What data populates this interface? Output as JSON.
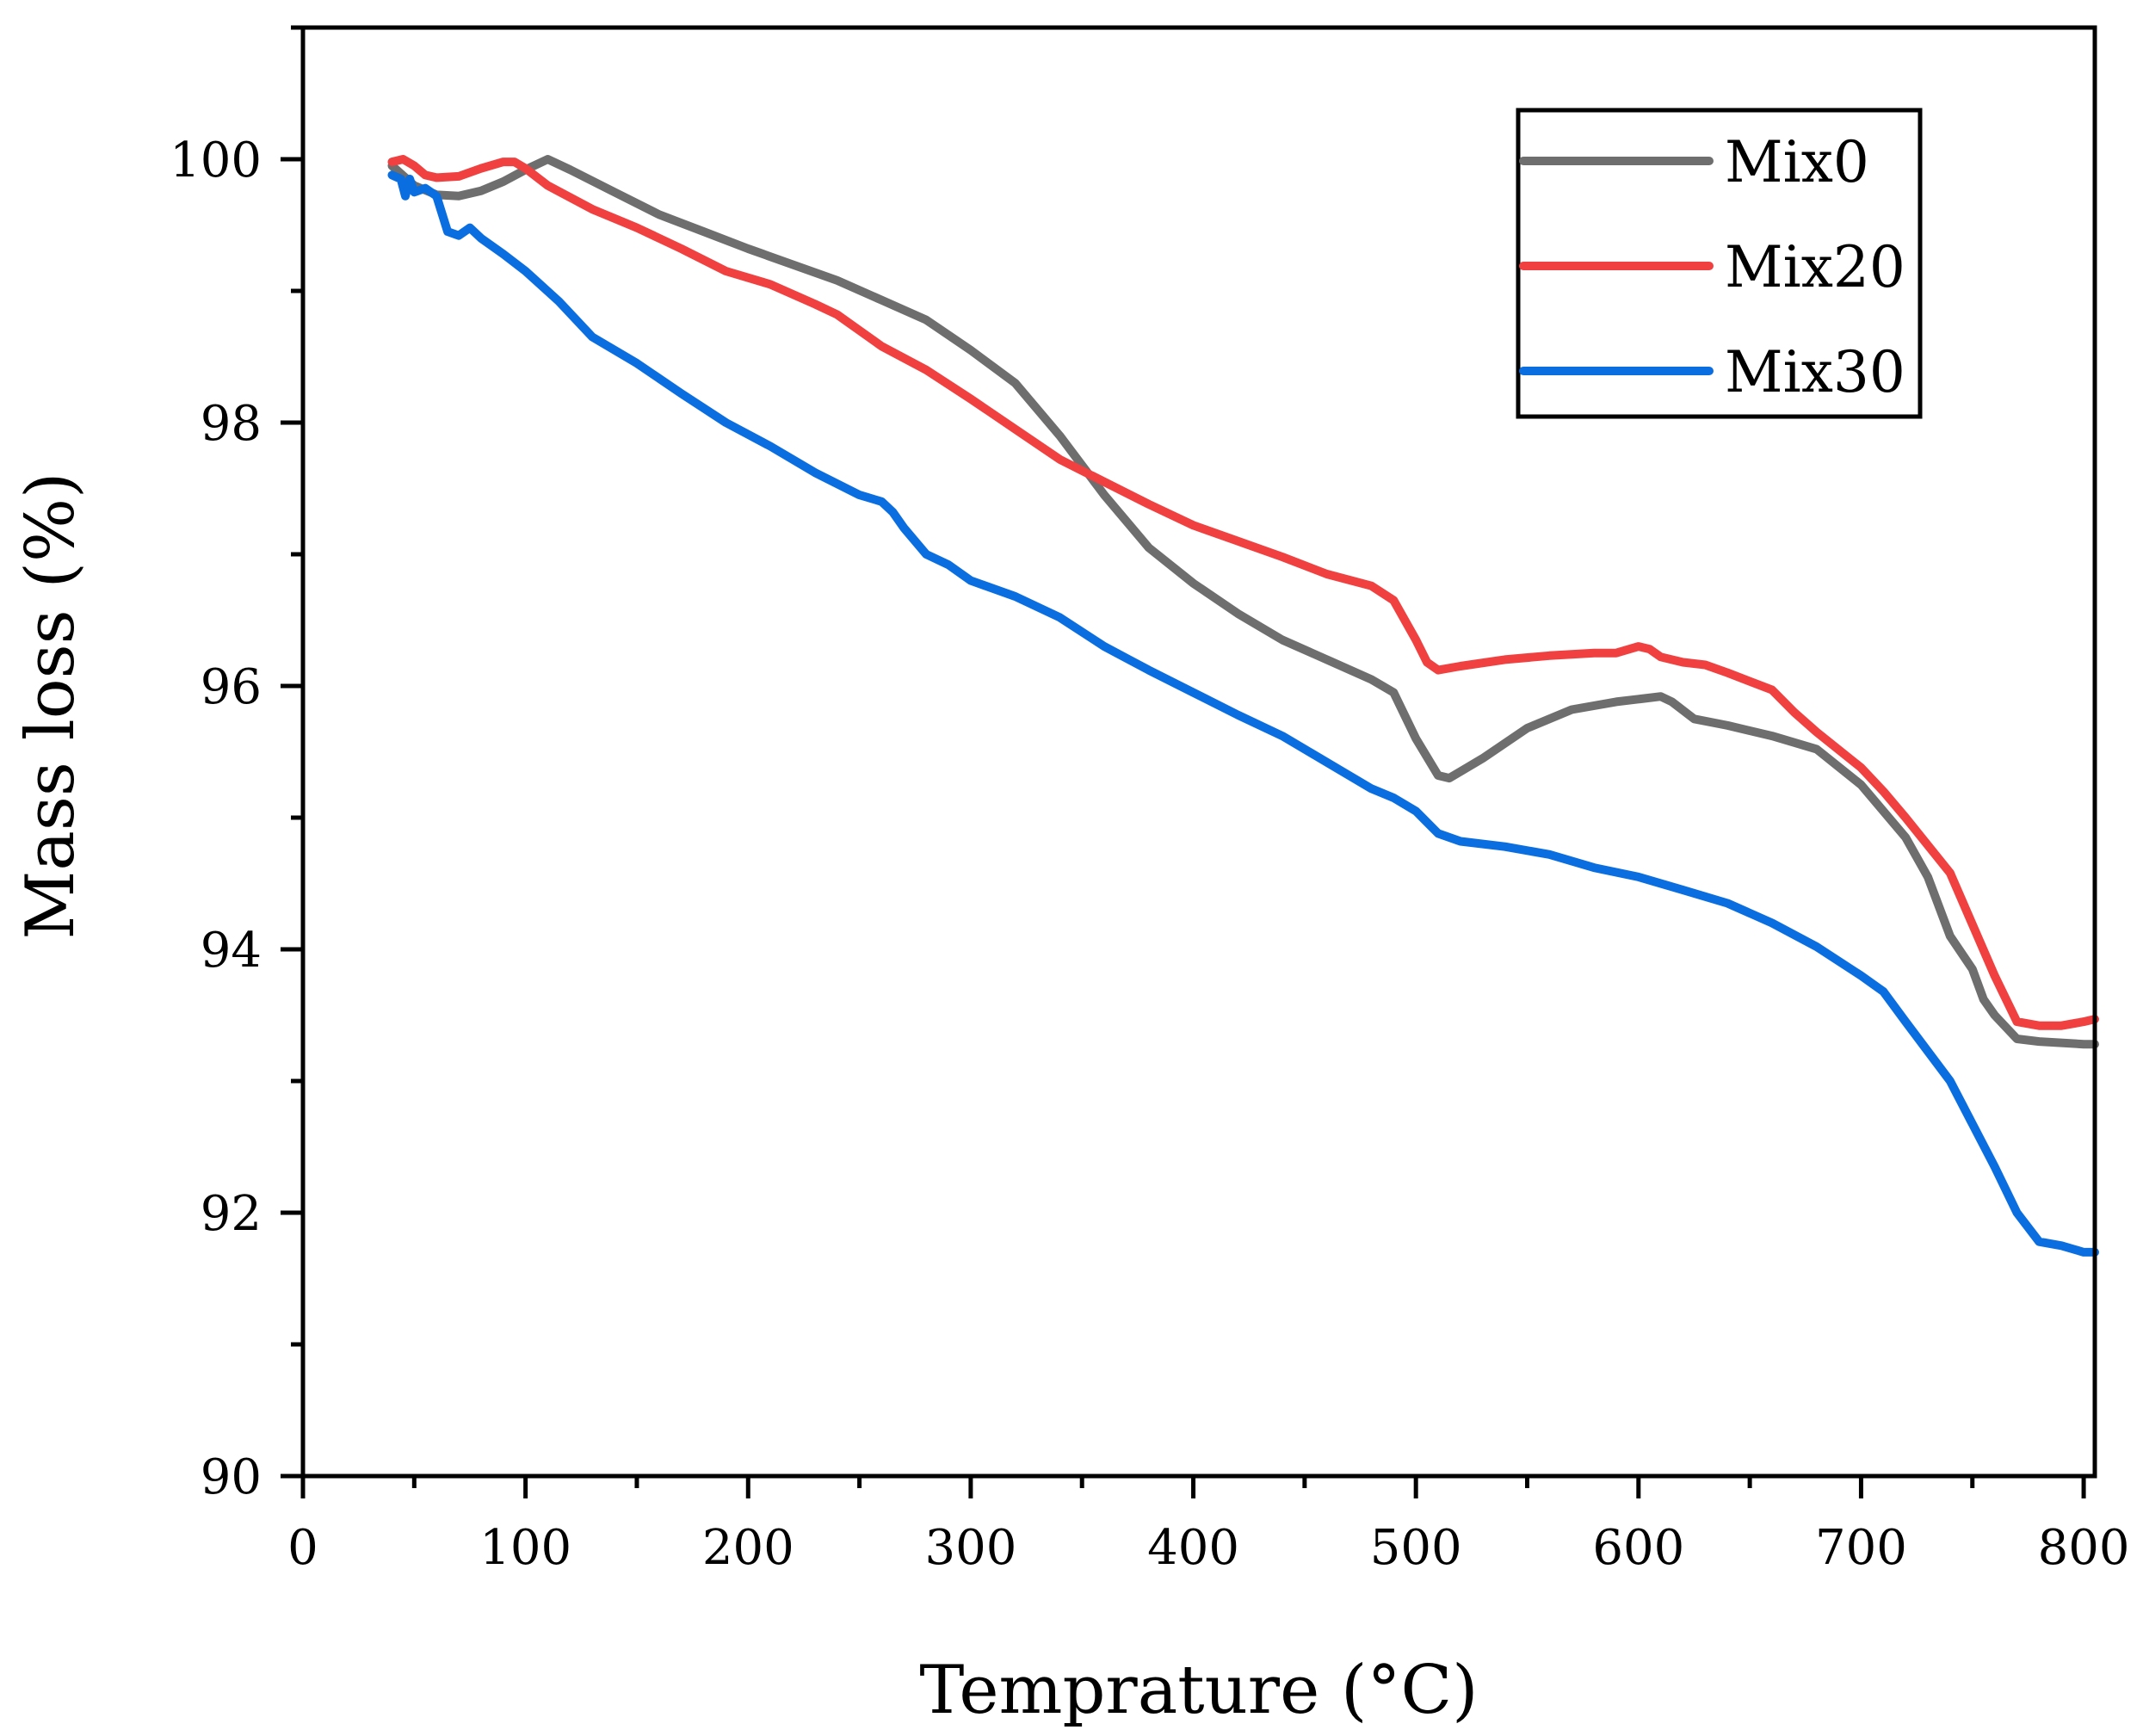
{
  "chart_data": {
    "type": "line",
    "title": "",
    "xlabel": "Temprature (°C)",
    "ylabel": "Mass loss (%)",
    "xlim": [
      0,
      805
    ],
    "ylim": [
      90,
      101
    ],
    "xticks": [
      0,
      100,
      200,
      300,
      400,
      500,
      600,
      700,
      800
    ],
    "yticks": [
      90,
      92,
      94,
      96,
      98,
      100
    ],
    "xticks_minor": [
      50,
      150,
      250,
      350,
      450,
      550,
      650,
      750
    ],
    "yticks_minor": [
      91,
      93,
      95,
      97,
      99,
      101
    ],
    "grid": false,
    "legend_position": "top-right",
    "series": [
      {
        "name": "Mix0",
        "color": "#6e6e6e",
        "x": [
          40,
          50,
          60,
          70,
          80,
          90,
          100,
          110,
          120,
          140,
          160,
          180,
          200,
          220,
          240,
          260,
          280,
          300,
          320,
          340,
          360,
          380,
          400,
          420,
          440,
          460,
          480,
          490,
          500,
          510,
          515,
          530,
          550,
          570,
          590,
          600,
          610,
          615,
          625,
          640,
          660,
          680,
          700,
          720,
          730,
          740,
          750,
          755,
          760,
          770,
          780,
          800,
          805
        ],
        "y": [
          99.95,
          99.8,
          99.73,
          99.72,
          99.76,
          99.83,
          99.92,
          100.0,
          99.92,
          99.75,
          99.58,
          99.45,
          99.32,
          99.2,
          99.08,
          98.93,
          98.78,
          98.55,
          98.3,
          97.9,
          97.45,
          97.05,
          96.78,
          96.55,
          96.35,
          96.2,
          96.05,
          95.95,
          95.6,
          95.32,
          95.3,
          95.45,
          95.68,
          95.82,
          95.88,
          95.9,
          95.92,
          95.88,
          95.75,
          95.7,
          95.62,
          95.52,
          95.25,
          94.85,
          94.55,
          94.1,
          93.85,
          93.62,
          93.5,
          93.32,
          93.3,
          93.28,
          93.28
        ]
      },
      {
        "name": "Mix20",
        "color": "#f04040",
        "x": [
          40,
          45,
          50,
          55,
          60,
          70,
          80,
          90,
          95,
          100,
          110,
          130,
          150,
          170,
          190,
          210,
          230,
          240,
          260,
          280,
          300,
          320,
          340,
          360,
          380,
          400,
          420,
          440,
          460,
          480,
          490,
          500,
          505,
          510,
          520,
          540,
          560,
          580,
          590,
          600,
          605,
          610,
          620,
          630,
          640,
          660,
          670,
          680,
          700,
          710,
          720,
          740,
          760,
          770,
          780,
          790,
          800,
          805
        ],
        "y": [
          99.98,
          100.0,
          99.95,
          99.88,
          99.86,
          99.87,
          99.93,
          99.98,
          99.98,
          99.93,
          99.8,
          99.62,
          99.48,
          99.32,
          99.15,
          99.05,
          98.9,
          98.82,
          98.58,
          98.4,
          98.18,
          97.95,
          97.72,
          97.55,
          97.38,
          97.22,
          97.1,
          96.98,
          96.85,
          96.76,
          96.65,
          96.35,
          96.18,
          96.12,
          96.15,
          96.2,
          96.23,
          96.25,
          96.25,
          96.3,
          96.28,
          96.22,
          96.18,
          96.16,
          96.1,
          95.97,
          95.8,
          95.65,
          95.38,
          95.2,
          95.0,
          94.58,
          93.8,
          93.45,
          93.42,
          93.42,
          93.45,
          93.47
        ]
      },
      {
        "name": "Mix30",
        "color": "#0a6ee0",
        "x": [
          40,
          44,
          46,
          48,
          50,
          55,
          60,
          65,
          70,
          75,
          80,
          90,
          100,
          115,
          130,
          150,
          170,
          190,
          210,
          230,
          250,
          260,
          265,
          270,
          280,
          290,
          300,
          320,
          340,
          360,
          380,
          400,
          420,
          440,
          460,
          480,
          490,
          500,
          510,
          520,
          540,
          560,
          580,
          600,
          620,
          640,
          660,
          680,
          700,
          710,
          720,
          740,
          760,
          770,
          780,
          790,
          800,
          805
        ],
        "y": [
          99.88,
          99.85,
          99.72,
          99.85,
          99.75,
          99.78,
          99.72,
          99.45,
          99.42,
          99.48,
          99.4,
          99.28,
          99.15,
          98.92,
          98.65,
          98.45,
          98.22,
          98.0,
          97.82,
          97.62,
          97.45,
          97.4,
          97.32,
          97.2,
          97.0,
          96.92,
          96.8,
          96.68,
          96.52,
          96.3,
          96.12,
          95.95,
          95.78,
          95.62,
          95.42,
          95.22,
          95.15,
          95.05,
          94.88,
          94.82,
          94.78,
          94.72,
          94.62,
          94.55,
          94.45,
          94.35,
          94.2,
          94.02,
          93.8,
          93.68,
          93.45,
          93.0,
          92.35,
          92.0,
          91.78,
          91.75,
          91.7,
          91.7
        ]
      }
    ]
  }
}
